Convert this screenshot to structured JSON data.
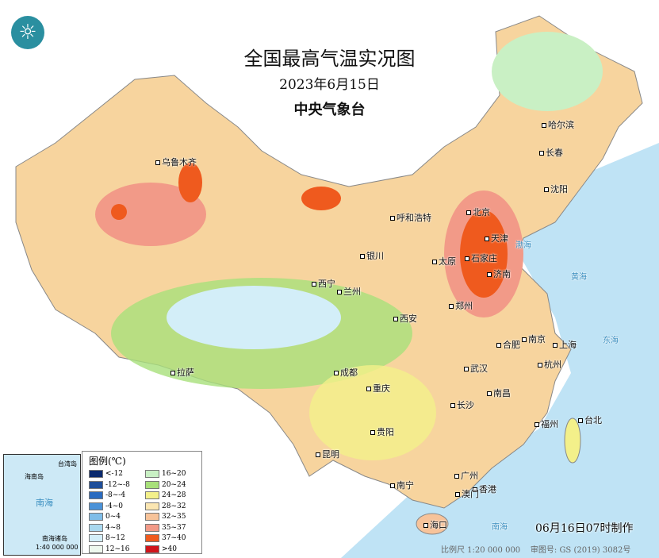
{
  "title": "全国最高气温实况图",
  "date": "2023年6月15日",
  "agency": "中央气象台",
  "logo_icon": "cma-logo-icon",
  "cities": [
    "乌鲁木齐",
    "哈尔滨",
    "长春",
    "沈阳",
    "呼和浩特",
    "北京",
    "天津",
    "银川",
    "太原",
    "石家庄",
    "济南",
    "西宁",
    "兰州",
    "郑州",
    "西安",
    "合肥",
    "南京",
    "上海",
    "拉萨",
    "成都",
    "武汉",
    "杭州",
    "重庆",
    "南昌",
    "长沙",
    "台北",
    "福州",
    "贵阳",
    "昆明",
    "广州",
    "南宁",
    "香港",
    "澳门",
    "海口"
  ],
  "legend": {
    "title": "图例(℃)",
    "items": [
      {
        "label": "<-12",
        "color": "#0b2a6e"
      },
      {
        "label": "-12~-8",
        "color": "#1f4f9a"
      },
      {
        "label": "-8~-4",
        "color": "#2a6bc0"
      },
      {
        "label": "-4~0",
        "color": "#4a92d8"
      },
      {
        "label": "0~4",
        "color": "#7fbde8"
      },
      {
        "label": "4~8",
        "color": "#a9d8ef"
      },
      {
        "label": "8~12",
        "color": "#d3eef8"
      },
      {
        "label": "12~16",
        "color": "#eef8ee"
      },
      {
        "label": "16~20",
        "color": "#c9f0c4"
      },
      {
        "label": "20~24",
        "color": "#a8e07a"
      },
      {
        "label": "24~28",
        "color": "#f3f08a"
      },
      {
        "label": "28~32",
        "color": "#fbe6b2"
      },
      {
        "label": "32~35",
        "color": "#f7c39a"
      },
      {
        "label": "35~37",
        "color": "#f29a88"
      },
      {
        "label": "37~40",
        "color": "#ef5a1e"
      },
      {
        "label": ">40",
        "color": "#d0141a"
      }
    ]
  },
  "inset": {
    "sea": "南海",
    "island": "海南岛",
    "taiwan": "台湾岛",
    "islands": "南海诸岛",
    "scale": "1:40 000 000"
  },
  "sea_labels": [
    "渤海",
    "黄海",
    "东海",
    "南海"
  ],
  "made_time": "06月16日07时制作",
  "scale": "比例尺 1:20 000 000",
  "map_number": "审图号: GS (2019) 3082号"
}
